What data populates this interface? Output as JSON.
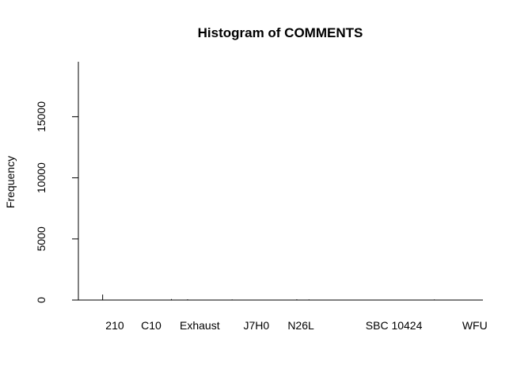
{
  "chart_data": {
    "type": "bar",
    "title": "Histogram of COMMENTS",
    "xlabel": "",
    "ylabel": "Frequency",
    "ylim": [
      0,
      19500
    ],
    "yticks": [
      0,
      5000,
      10000,
      15000
    ],
    "xlim": [
      0,
      100
    ],
    "x_tick_labels": [
      {
        "label": "210",
        "x": 9
      },
      {
        "label": "C10",
        "x": 18
      },
      {
        "label": "Exhaust",
        "x": 30
      },
      {
        "label": "J7H0",
        "x": 44
      },
      {
        "label": "N26L",
        "x": 55
      },
      {
        "label": "SBC 10424",
        "x": 78
      },
      {
        "label": "WFU",
        "x": 98
      }
    ],
    "bars": [
      {
        "x": 6,
        "value": 450
      },
      {
        "x": 23,
        "value": 80
      },
      {
        "x": 27,
        "value": 60
      },
      {
        "x": 38,
        "value": 50
      },
      {
        "x": 54,
        "value": 60
      },
      {
        "x": 57,
        "value": 50
      },
      {
        "x": 88,
        "value": 50
      }
    ],
    "grid": false,
    "legend": "none"
  }
}
